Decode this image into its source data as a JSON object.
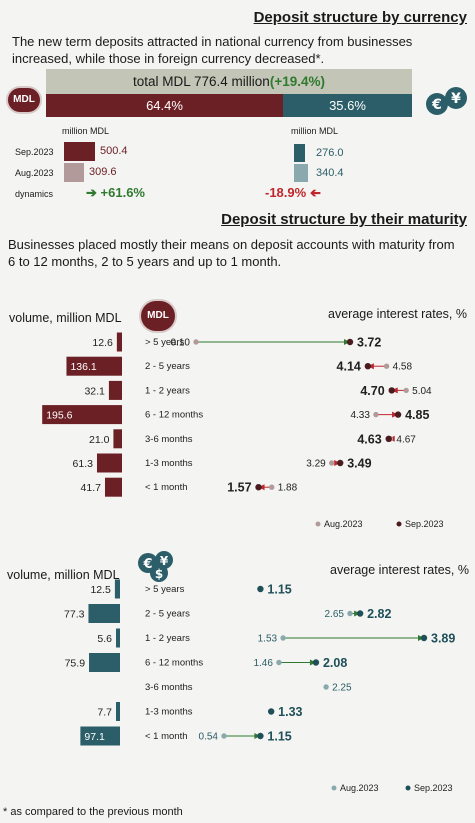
{
  "section1": {
    "title": "Deposit structure by currency",
    "intro_line1": "The new term deposits attracted in national currency from businesses",
    "intro_line2": "increased, while those in foreign currency decreased*.",
    "total_label": "total MDL 776.4 million",
    "total_change": "(+19.4%)",
    "mdl_badge": "MDL",
    "share_mdl": "64.4%",
    "share_fx": "35.6%",
    "unit_mdl": "million MDL",
    "unit_fx": "million MDL",
    "row_sep": "Sep.2023",
    "row_aug": "Aug.2023",
    "row_dyn": "dynamics",
    "mdl_sep": "500.4",
    "mdl_aug": "309.6",
    "mdl_dyn": "+61.6%",
    "fx_sep": "276.0",
    "fx_aug": "340.4",
    "fx_dyn": "-18.9%",
    "colors": {
      "mdl_dark": "#6b2026",
      "mdl_light": "#b39a9a",
      "fx_dark": "#2b5e68",
      "fx_light": "#8aa9ae",
      "positive": "#2f7a2f",
      "negative": "#c0262c"
    }
  },
  "section2": {
    "title": "Deposit structure by their maturity",
    "intro_line1": "Businesses placed mostly their means on deposit accounts with maturity from",
    "intro_line2": "6 to 12 months, 2 to 5 years and up to 1 month."
  },
  "footnote": "* as compared to the previous month",
  "chart_data": [
    {
      "type": "bar",
      "currency": "MDL",
      "badge": "MDL",
      "volume_label": "volume, million MDL",
      "rate_label": "average interest rates, %",
      "categories": [
        "> 5 years",
        "2 - 5 years",
        "1 - 2 years",
        "6 - 12 months",
        "3-6 months",
        "1-3 months",
        "< 1 month"
      ],
      "volumes_sep2023": [
        12.6,
        136.1,
        32.1,
        195.6,
        21.0,
        61.3,
        41.7
      ],
      "volume_labels": [
        "12.6",
        "136.1",
        "32.1",
        "195.6",
        "21.0",
        "61.3",
        "41.7"
      ],
      "rates": {
        "series": [
          {
            "name": "Aug.2023",
            "values": [
              0.1,
              4.58,
              5.04,
              4.33,
              4.67,
              3.29,
              1.88
            ],
            "labels": [
              "0.10",
              "4.58",
              "5.04",
              "4.33",
              "4.67",
              "3.29",
              "1.88"
            ]
          },
          {
            "name": "Sep.2023",
            "values": [
              3.72,
              4.14,
              4.7,
              4.85,
              4.63,
              3.49,
              1.57
            ],
            "labels": [
              "3.72",
              "4.14",
              "4.70",
              "4.85",
              "4.63",
              "3.49",
              "1.57"
            ]
          }
        ]
      },
      "legend": [
        "Aug.2023",
        "Sep.2023"
      ]
    },
    {
      "type": "bar",
      "currency": "foreign currency",
      "badge_icon": "currency-coins-icon",
      "volume_label": "volume, million MDL",
      "rate_label": "average interest rates, %",
      "categories": [
        "> 5 years",
        "2 - 5 years",
        "1 - 2 years",
        "6 - 12 months",
        "3-6 months",
        "1-3 months",
        "< 1 month"
      ],
      "volumes_sep2023": [
        12.5,
        77.3,
        5.6,
        75.9,
        null,
        7.7,
        97.1
      ],
      "volume_labels": [
        "12.5",
        "77.3",
        "5.6",
        "75.9",
        "",
        "7.7",
        "97.1"
      ],
      "rates": {
        "series": [
          {
            "name": "Aug.2023",
            "values": [
              null,
              2.65,
              1.53,
              1.46,
              2.25,
              null,
              0.54
            ],
            "labels": [
              "",
              "2.65",
              "1.53",
              "1.46",
              "2.25",
              "",
              "0.54"
            ]
          },
          {
            "name": "Sep.2023",
            "values": [
              1.15,
              2.82,
              3.89,
              2.08,
              null,
              1.33,
              1.15
            ],
            "labels": [
              "1.15",
              "2.82",
              "3.89",
              "2.08",
              "",
              "1.33",
              "1.15"
            ]
          }
        ]
      },
      "legend": [
        "Aug.2023",
        "Sep.2023"
      ]
    }
  ]
}
